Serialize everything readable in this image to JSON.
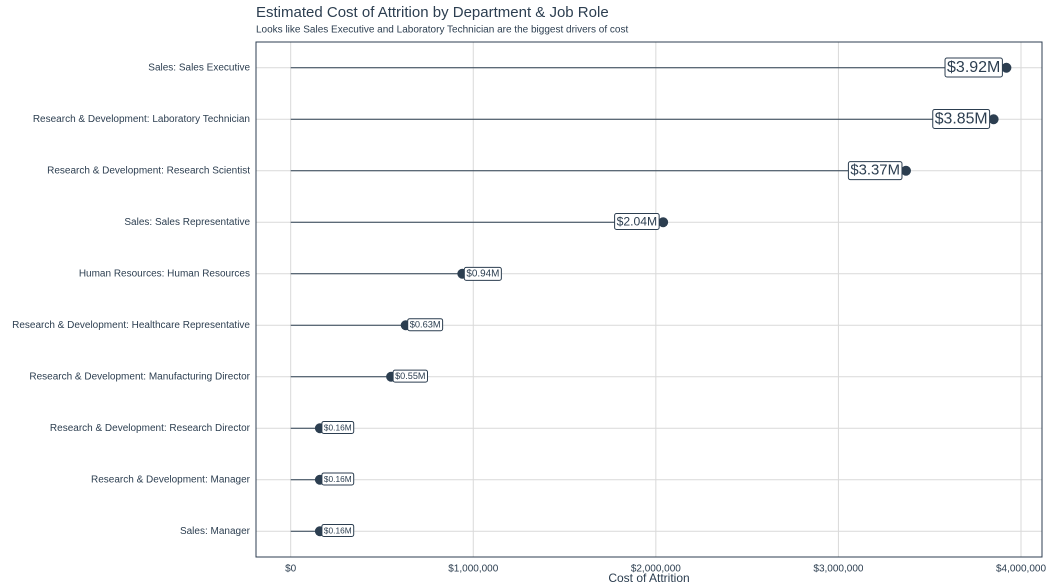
{
  "chart_data": {
    "type": "lollipop",
    "title": "Estimated Cost of Attrition by Department & Job Role",
    "subtitle": "Looks like Sales Executive and Laboratory Technician are the biggest drivers of cost",
    "x_label": "Cost of Attrition",
    "categories": [
      "Sales: Sales Executive",
      "Research & Development: Laboratory Technician",
      "Research & Development: Research Scientist",
      "Sales: Sales Representative",
      "Human Resources: Human Resources",
      "Research & Development: Healthcare Representative",
      "Research & Development: Manufacturing Director",
      "Research & Development: Research Director",
      "Research & Development: Manager",
      "Sales: Manager"
    ],
    "values": [
      3920000,
      3850000,
      3370000,
      2040000,
      940000,
      630000,
      550000,
      160000,
      160000,
      160000
    ],
    "value_labels": [
      "$3.92M",
      "$3.85M",
      "$3.37M",
      "$2.04M",
      "$0.94M",
      "$0.63M",
      "$0.55M",
      "$0.16M",
      "$0.16M",
      "$0.16M"
    ],
    "color": "#2c3e50",
    "xlim": [
      -190000,
      4115000
    ],
    "xticks": [
      {
        "value": 0,
        "label": "$0"
      },
      {
        "value": 1000000,
        "label": "$1,000,000"
      },
      {
        "value": 2000000,
        "label": "$2,000,000"
      },
      {
        "value": 3000000,
        "label": "$3,000,000"
      },
      {
        "value": 4000000,
        "label": "$4,000,000"
      }
    ],
    "grid": true
  }
}
